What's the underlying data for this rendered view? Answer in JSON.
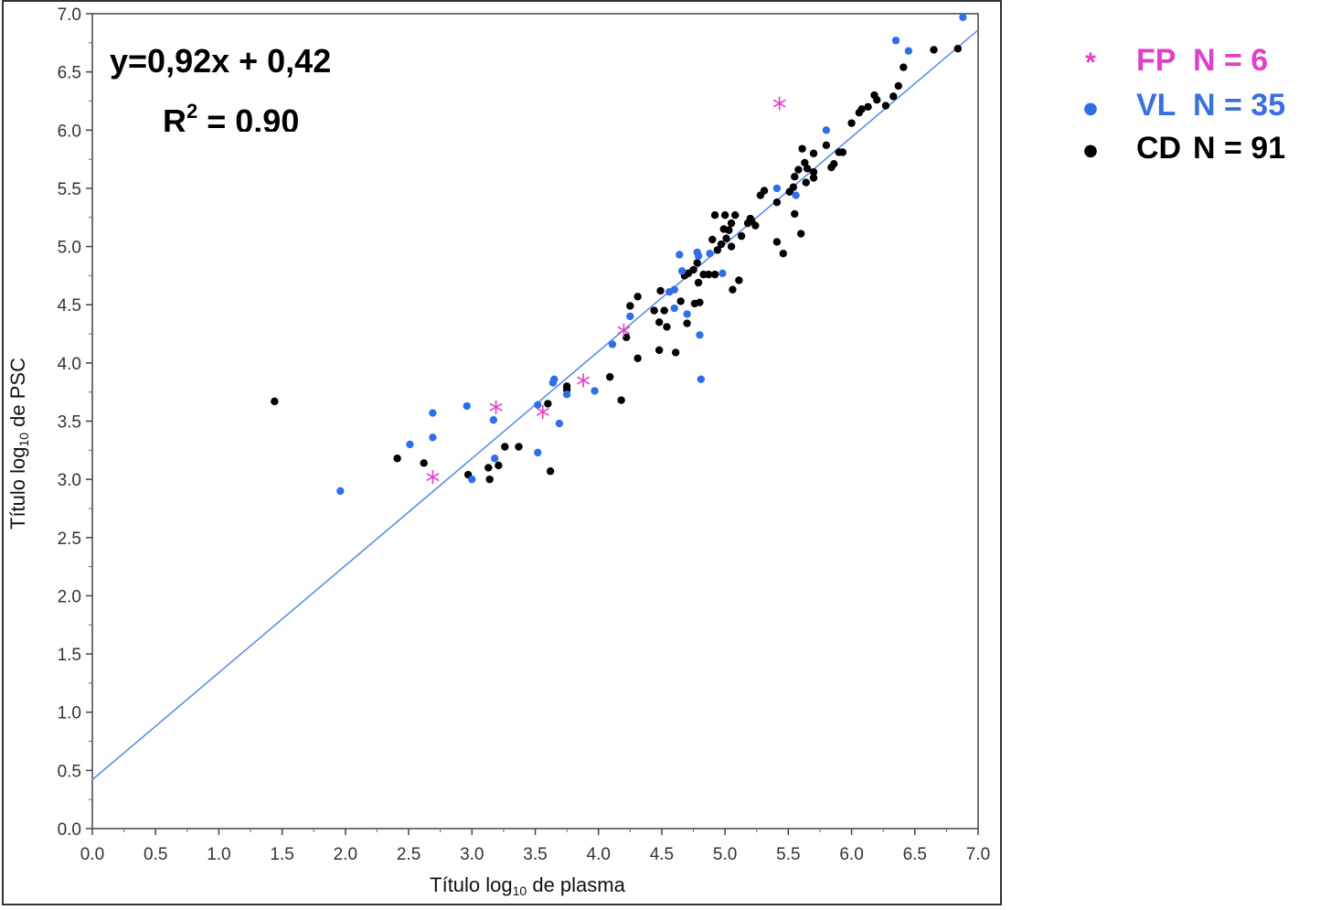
{
  "chart_data": {
    "type": "scatter",
    "xlabel_parts": [
      "Título log",
      "10",
      " de plasma"
    ],
    "ylabel_parts": [
      "Título log",
      "10",
      " de PSC"
    ],
    "xlim": [
      0,
      7
    ],
    "ylim": [
      0,
      7
    ],
    "x_ticks": [
      "0.0",
      "0.5",
      "1.0",
      "1.5",
      "2.0",
      "2.5",
      "3.0",
      "3.5",
      "4.0",
      "4.5",
      "5.0",
      "5.5",
      "6.0",
      "6.5",
      "7.0"
    ],
    "y_ticks": [
      "0.0",
      "0.5",
      "1.0",
      "1.5",
      "2.0",
      "2.5",
      "3.0",
      "3.5",
      "4.0",
      "4.5",
      "5.0",
      "5.5",
      "6.0",
      "6.5",
      "7.0"
    ],
    "equation": "y=0,92x + 0,42",
    "r2": {
      "prefix": "R",
      "sup": "2",
      "rest": " = 0.90"
    },
    "regression": {
      "slope": 0.92,
      "intercept": 0.42,
      "color": "#5b8ee6"
    },
    "series": [
      {
        "name": "FP",
        "legend_label": "FP",
        "legend_count": "N = 6",
        "marker": "asterisk",
        "color": "#e040c8",
        "legend_marker": "*",
        "points": [
          [
            2.69,
            3.02
          ],
          [
            3.19,
            3.62
          ],
          [
            3.56,
            3.58
          ],
          [
            3.88,
            3.85
          ],
          [
            4.2,
            4.28
          ],
          [
            5.43,
            6.23
          ]
        ]
      },
      {
        "name": "VL",
        "legend_label": "VL",
        "legend_count": "N = 35",
        "marker": "dot",
        "color": "#2f6fe6",
        "legend_marker": "●",
        "points": [
          [
            1.96,
            2.9
          ],
          [
            2.51,
            3.3
          ],
          [
            2.69,
            3.57
          ],
          [
            2.69,
            3.36
          ],
          [
            2.96,
            3.63
          ],
          [
            3.0,
            3.0
          ],
          [
            3.17,
            3.51
          ],
          [
            3.18,
            3.18
          ],
          [
            3.52,
            3.64
          ],
          [
            3.52,
            3.23
          ],
          [
            3.64,
            3.83
          ],
          [
            3.65,
            3.86
          ],
          [
            3.69,
            3.48
          ],
          [
            3.75,
            3.73
          ],
          [
            3.97,
            3.76
          ],
          [
            4.11,
            4.16
          ],
          [
            4.25,
            4.4
          ],
          [
            4.56,
            4.61
          ],
          [
            4.6,
            4.63
          ],
          [
            4.6,
            4.47
          ],
          [
            4.64,
            4.93
          ],
          [
            4.66,
            4.79
          ],
          [
            4.7,
            4.42
          ],
          [
            4.78,
            4.95
          ],
          [
            4.79,
            4.92
          ],
          [
            4.8,
            4.24
          ],
          [
            4.81,
            3.86
          ],
          [
            4.88,
            4.94
          ],
          [
            4.98,
            4.77
          ],
          [
            5.41,
            5.5
          ],
          [
            5.56,
            5.44
          ],
          [
            5.8,
            6.0
          ],
          [
            6.35,
            6.77
          ],
          [
            6.45,
            6.68
          ],
          [
            6.88,
            6.97
          ]
        ]
      },
      {
        "name": "CD",
        "legend_label": "CD",
        "legend_count": "N = 91",
        "marker": "dot",
        "color": "#000000",
        "legend_marker": "●",
        "points": [
          [
            1.44,
            3.67
          ],
          [
            2.41,
            3.18
          ],
          [
            2.62,
            3.14
          ],
          [
            2.97,
            3.04
          ],
          [
            3.13,
            3.1
          ],
          [
            3.14,
            3.0
          ],
          [
            3.21,
            3.12
          ],
          [
            3.26,
            3.28
          ],
          [
            3.37,
            3.28
          ],
          [
            3.6,
            3.65
          ],
          [
            3.62,
            3.07
          ],
          [
            3.75,
            3.8
          ],
          [
            3.75,
            3.77
          ],
          [
            4.09,
            3.88
          ],
          [
            4.18,
            3.68
          ],
          [
            4.22,
            4.22
          ],
          [
            4.25,
            4.49
          ],
          [
            4.31,
            4.57
          ],
          [
            4.31,
            4.04
          ],
          [
            4.44,
            4.45
          ],
          [
            4.48,
            4.35
          ],
          [
            4.48,
            4.11
          ],
          [
            4.49,
            4.62
          ],
          [
            4.52,
            4.45
          ],
          [
            4.54,
            4.31
          ],
          [
            4.61,
            4.09
          ],
          [
            4.65,
            4.53
          ],
          [
            4.68,
            4.75
          ],
          [
            4.7,
            4.34
          ],
          [
            4.71,
            4.77
          ],
          [
            4.75,
            4.8
          ],
          [
            4.76,
            4.51
          ],
          [
            4.78,
            4.86
          ],
          [
            4.79,
            4.69
          ],
          [
            4.8,
            4.52
          ],
          [
            4.83,
            4.76
          ],
          [
            4.87,
            4.76
          ],
          [
            4.9,
            5.06
          ],
          [
            4.92,
            4.76
          ],
          [
            4.92,
            5.27
          ],
          [
            4.94,
            4.97
          ],
          [
            4.97,
            5.02
          ],
          [
            4.99,
            5.15
          ],
          [
            5.0,
            5.27
          ],
          [
            5.01,
            5.07
          ],
          [
            5.03,
            5.14
          ],
          [
            5.05,
            5.0
          ],
          [
            5.06,
            4.63
          ],
          [
            5.08,
            5.27
          ],
          [
            5.11,
            4.71
          ],
          [
            5.13,
            5.09
          ],
          [
            5.18,
            5.2
          ],
          [
            5.2,
            5.24
          ],
          [
            5.21,
            5.22
          ],
          [
            5.24,
            5.18
          ],
          [
            5.28,
            5.44
          ],
          [
            5.31,
            5.48
          ],
          [
            5.41,
            5.38
          ],
          [
            5.41,
            5.04
          ],
          [
            5.46,
            4.94
          ],
          [
            5.51,
            5.47
          ],
          [
            5.54,
            5.51
          ],
          [
            5.55,
            5.6
          ],
          [
            5.55,
            5.28
          ],
          [
            5.58,
            5.66
          ],
          [
            5.6,
            5.11
          ],
          [
            5.61,
            5.84
          ],
          [
            5.63,
            5.72
          ],
          [
            5.64,
            5.55
          ],
          [
            5.65,
            5.67
          ],
          [
            5.7,
            5.8
          ],
          [
            5.7,
            5.64
          ],
          [
            5.7,
            5.59
          ],
          [
            5.8,
            5.87
          ],
          [
            5.84,
            5.68
          ],
          [
            5.86,
            5.71
          ],
          [
            5.9,
            5.81
          ],
          [
            5.93,
            5.81
          ],
          [
            6.0,
            6.06
          ],
          [
            6.06,
            6.15
          ],
          [
            6.08,
            6.18
          ],
          [
            6.13,
            6.2
          ],
          [
            6.18,
            6.3
          ],
          [
            6.2,
            6.26
          ],
          [
            6.27,
            6.21
          ],
          [
            6.33,
            6.29
          ],
          [
            6.37,
            6.38
          ],
          [
            6.41,
            6.54
          ],
          [
            6.65,
            6.69
          ],
          [
            6.84,
            6.7
          ],
          [
            5.05,
            5.2
          ]
        ]
      }
    ]
  }
}
